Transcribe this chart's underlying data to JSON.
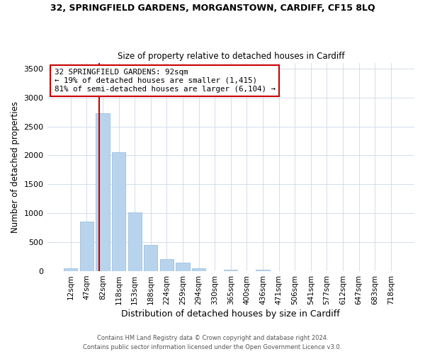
{
  "title_line1": "32, SPRINGFIELD GARDENS, MORGANSTOWN, CARDIFF, CF15 8LQ",
  "title_line2": "Size of property relative to detached houses in Cardiff",
  "xlabel": "Distribution of detached houses by size in Cardiff",
  "ylabel": "Number of detached properties",
  "bar_labels": [
    "12sqm",
    "47sqm",
    "82sqm",
    "118sqm",
    "153sqm",
    "188sqm",
    "224sqm",
    "259sqm",
    "294sqm",
    "330sqm",
    "365sqm",
    "400sqm",
    "436sqm",
    "471sqm",
    "506sqm",
    "541sqm",
    "577sqm",
    "612sqm",
    "647sqm",
    "683sqm",
    "718sqm"
  ],
  "bar_values": [
    55,
    855,
    2730,
    2060,
    1015,
    455,
    210,
    150,
    55,
    0,
    30,
    0,
    20,
    0,
    0,
    0,
    0,
    0,
    0,
    0,
    0
  ],
  "bar_color": "#b8d4ec",
  "bar_edge_color": "#90b8d8",
  "vline_color": "#cc0000",
  "annotation_title": "32 SPRINGFIELD GARDENS: 92sqm",
  "annotation_line2": "← 19% of detached houses are smaller (1,415)",
  "annotation_line3": "81% of semi-detached houses are larger (6,104) →",
  "annotation_box_edge": "#cc0000",
  "ylim": [
    0,
    3600
  ],
  "yticks": [
    0,
    500,
    1000,
    1500,
    2000,
    2500,
    3000,
    3500
  ],
  "footer_line1": "Contains HM Land Registry data © Crown copyright and database right 2024.",
  "footer_line2": "Contains public sector information licensed under the Open Government Licence v3.0."
}
